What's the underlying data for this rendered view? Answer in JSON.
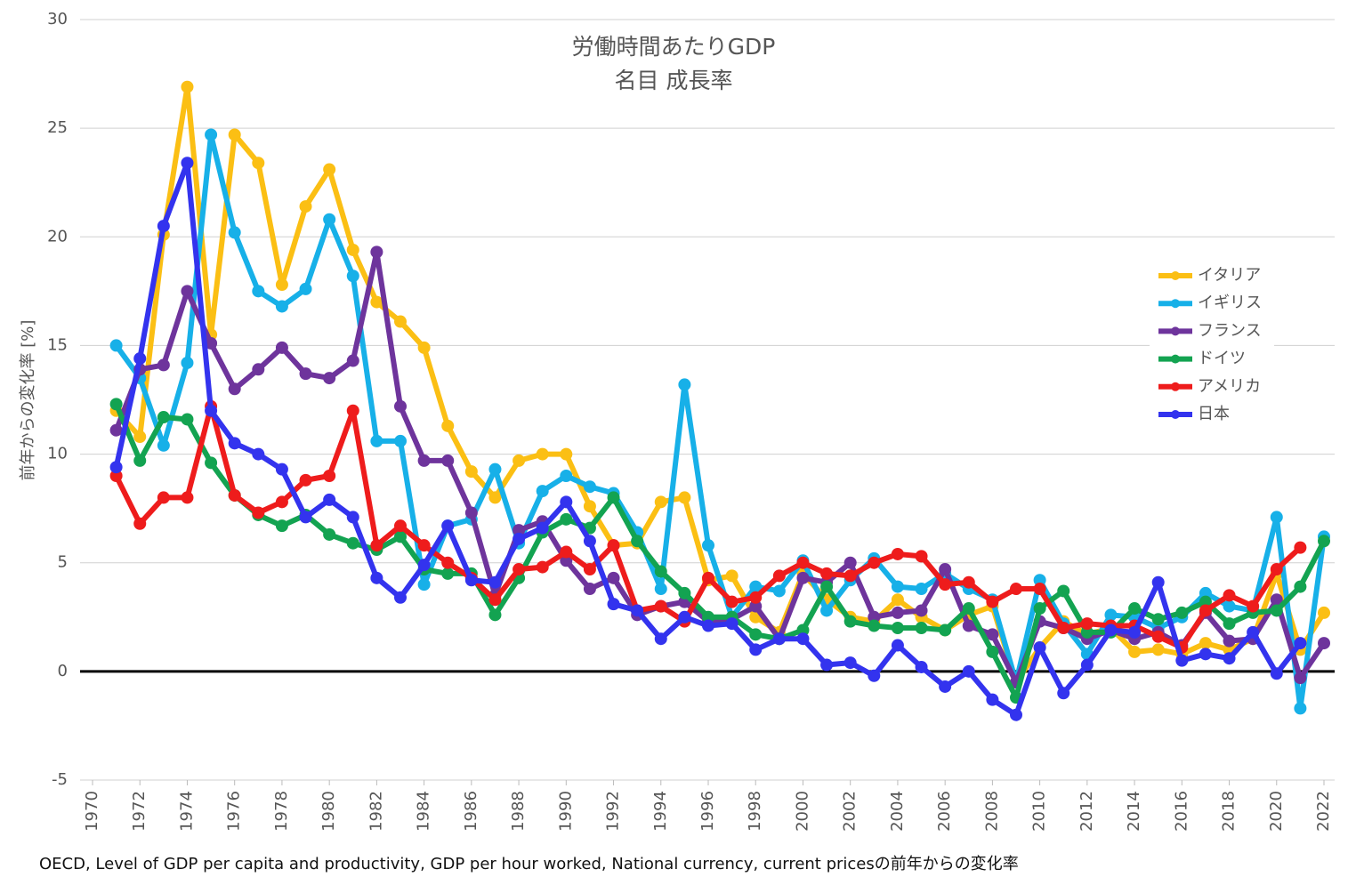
{
  "chart_data": {
    "type": "line",
    "title": [
      "労働時間あたりGDP",
      "名目 成長率"
    ],
    "y_label": "前年からの変化率 [%]",
    "source": "OECD, Level of GDP per capita and productivity, GDP per hour worked, National currency, current pricesの前年からの変化率",
    "x": [
      1971,
      1972,
      1973,
      1974,
      1975,
      1976,
      1977,
      1978,
      1979,
      1980,
      1981,
      1982,
      1983,
      1984,
      1985,
      1986,
      1987,
      1988,
      1989,
      1990,
      1991,
      1992,
      1993,
      1994,
      1995,
      1996,
      1997,
      1998,
      1999,
      2000,
      2001,
      2002,
      2003,
      2004,
      2005,
      2006,
      2007,
      2008,
      2009,
      2010,
      2011,
      2012,
      2013,
      2014,
      2015,
      2016,
      2017,
      2018,
      2019,
      2020,
      2021,
      2022
    ],
    "xlim": [
      1970,
      2022
    ],
    "xticks": [
      1970,
      1972,
      1974,
      1976,
      1978,
      1980,
      1982,
      1984,
      1986,
      1988,
      1990,
      1992,
      1994,
      1996,
      1998,
      2000,
      2002,
      2004,
      2006,
      2008,
      2010,
      2012,
      2014,
      2016,
      2018,
      2020,
      2022
    ],
    "ylim": [
      -5,
      30
    ],
    "yticks": [
      -5,
      0,
      5,
      10,
      15,
      20,
      25,
      30
    ],
    "grid": true,
    "legend": "right",
    "series": [
      {
        "name": "イタリア",
        "color": "#fbbf14",
        "values": [
          12.0,
          10.8,
          20.1,
          26.9,
          15.5,
          24.7,
          23.4,
          17.8,
          21.4,
          23.1,
          19.4,
          17.0,
          16.1,
          14.9,
          11.3,
          9.2,
          8.0,
          9.7,
          10.0,
          10.0,
          7.6,
          5.8,
          5.9,
          7.8,
          8.0,
          4.2,
          4.4,
          2.5,
          1.8,
          4.5,
          3.3,
          2.5,
          2.3,
          3.3,
          2.5,
          1.9,
          2.6,
          3.0,
          -0.5,
          1.1,
          2.3,
          1.7,
          2.0,
          0.9,
          1.0,
          0.8,
          1.3,
          1.0,
          1.5,
          4.5,
          1.0,
          2.7
        ]
      },
      {
        "name": "イギリス",
        "color": "#17b0e8",
        "values": [
          15.0,
          13.5,
          10.4,
          14.2,
          24.7,
          20.2,
          17.5,
          16.8,
          17.6,
          20.8,
          18.2,
          10.6,
          10.6,
          4.0,
          6.7,
          7.0,
          9.3,
          5.9,
          8.3,
          9.0,
          8.5,
          8.2,
          6.4,
          3.8,
          13.2,
          5.8,
          2.5,
          3.9,
          3.7,
          5.1,
          2.8,
          4.2,
          5.2,
          3.9,
          3.8,
          4.5,
          3.8,
          3.3,
          -0.5,
          4.2,
          2.2,
          0.8,
          2.6,
          2.5,
          2.0,
          2.5,
          3.6,
          3.0,
          2.8,
          7.1,
          -1.7,
          6.2
        ]
      },
      {
        "name": "フランス",
        "color": "#6e349c",
        "values": [
          11.1,
          13.9,
          14.1,
          17.5,
          15.1,
          13.0,
          13.9,
          14.9,
          13.7,
          13.5,
          14.3,
          19.3,
          12.2,
          9.7,
          9.7,
          7.3,
          3.5,
          6.5,
          6.9,
          5.1,
          3.8,
          4.3,
          2.6,
          3.0,
          3.2,
          2.3,
          2.4,
          3.0,
          1.5,
          4.3,
          4.1,
          5.0,
          2.5,
          2.7,
          2.8,
          4.7,
          2.1,
          1.7,
          -0.5,
          2.3,
          2.0,
          1.5,
          1.9,
          1.5,
          1.8,
          1.2,
          2.7,
          1.4,
          1.5,
          3.3,
          -0.3,
          1.3
        ]
      },
      {
        "name": "ドイツ",
        "color": "#13a351",
        "values": [
          12.3,
          9.7,
          11.7,
          11.6,
          9.6,
          8.1,
          7.2,
          6.7,
          7.2,
          6.3,
          5.9,
          5.6,
          6.2,
          4.7,
          4.5,
          4.5,
          2.6,
          4.3,
          6.4,
          7.0,
          6.6,
          8.0,
          6.0,
          4.6,
          3.6,
          2.5,
          2.5,
          1.7,
          1.5,
          1.9,
          3.9,
          2.3,
          2.1,
          2.0,
          2.0,
          1.9,
          2.9,
          0.9,
          -1.2,
          2.9,
          3.7,
          1.8,
          1.8,
          2.9,
          2.4,
          2.7,
          3.2,
          2.2,
          2.7,
          2.8,
          3.9,
          6.0
        ]
      },
      {
        "name": "アメリカ",
        "color": "#ee1c1c",
        "values": [
          9.0,
          6.8,
          8.0,
          8.0,
          12.2,
          8.1,
          7.3,
          7.8,
          8.8,
          9.0,
          12.0,
          5.8,
          6.7,
          5.8,
          5.0,
          4.3,
          3.3,
          4.7,
          4.8,
          5.5,
          4.7,
          5.8,
          2.8,
          3.0,
          2.3,
          4.3,
          3.2,
          3.4,
          4.4,
          5.0,
          4.5,
          4.4,
          5.0,
          5.4,
          5.3,
          4.0,
          4.1,
          3.2,
          3.8,
          3.8,
          2.0,
          2.2,
          2.1,
          2.1,
          1.6,
          1.1,
          2.8,
          3.5,
          3.0,
          4.7,
          5.7,
          null
        ]
      },
      {
        "name": "日本",
        "color": "#3333ee",
        "values": [
          9.4,
          14.4,
          20.5,
          23.4,
          12.0,
          10.5,
          10.0,
          9.3,
          7.1,
          7.9,
          7.1,
          4.3,
          3.4,
          4.9,
          6.7,
          4.2,
          4.1,
          6.1,
          6.6,
          7.8,
          6.0,
          3.1,
          2.8,
          1.5,
          2.5,
          2.1,
          2.2,
          1.0,
          1.5,
          1.5,
          0.3,
          0.4,
          -0.2,
          1.2,
          0.2,
          -0.7,
          0.0,
          -1.3,
          -2.0,
          1.1,
          -1.0,
          0.3,
          1.9,
          1.8,
          4.1,
          0.5,
          0.8,
          0.6,
          1.8,
          -0.1,
          1.3,
          null
        ]
      }
    ]
  }
}
